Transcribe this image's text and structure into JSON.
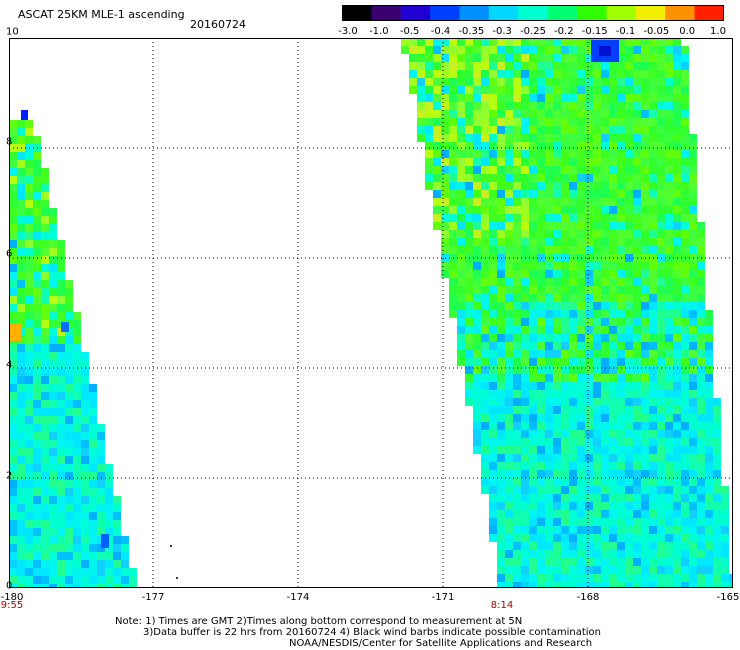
{
  "header": {
    "title": "ASCAT 25KM MLE-1 ascending",
    "date": "20160724"
  },
  "colorbar": {
    "labels": [
      "-3.0",
      "-1.0",
      "-0.5",
      "-0.4",
      "-0.35",
      "-0.3",
      "-0.25",
      "-0.2",
      "-0.15",
      "-0.1",
      "-0.05",
      "0.0",
      "1.0"
    ],
    "colors": [
      "#000000",
      "#3a0070",
      "#2000d0",
      "#0040ff",
      "#0090ff",
      "#00d8ff",
      "#00ffd0",
      "#00ff70",
      "#30ff00",
      "#a0ff00",
      "#f0f000",
      "#ff9000",
      "#ff2000"
    ]
  },
  "axes": {
    "y_labels": [
      "10",
      "8",
      "6",
      "4",
      "2",
      "0"
    ],
    "x_labels": [
      "-180",
      "-177",
      "-174",
      "-171",
      "-168",
      "-165"
    ],
    "lat_range": [
      0,
      10
    ],
    "lon_range": [
      -180,
      -165
    ]
  },
  "times": {
    "left": "9:55",
    "right": "8:14"
  },
  "notes": {
    "line1": "Note: 1) Times are GMT 2)Times along bottom correspond to measurement at 5N",
    "line2": "3)Data buffer is 22 hrs from 20160724 4) Black wind barbs indicate possible contamination",
    "line3": "NOAA/NESDIS/Center for Satellite Applications and Research"
  }
}
